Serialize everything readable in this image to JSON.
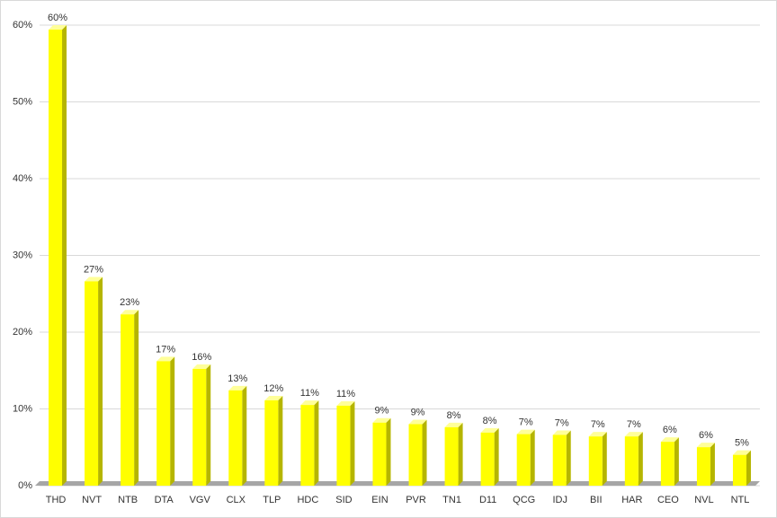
{
  "chart_data": {
    "type": "bar3d",
    "categories": [
      "THD",
      "NVT",
      "NTB",
      "DTA",
      "VGV",
      "CLX",
      "TLP",
      "HDC",
      "SID",
      "EIN",
      "PVR",
      "TN1",
      "D11",
      "QCG",
      "IDJ",
      "BII",
      "HAR",
      "CEO",
      "NVL",
      "NTL"
    ],
    "values": [
      60,
      27.2,
      22.9,
      16.8,
      15.8,
      13,
      11.7,
      11.1,
      11,
      8.8,
      8.6,
      8.2,
      7.5,
      7.3,
      7.2,
      7,
      7,
      6.3,
      5.6,
      4.6
    ],
    "value_labels": [
      "60%",
      "27%",
      "23%",
      "17%",
      "16%",
      "13%",
      "12%",
      "11%",
      "11%",
      "9%",
      "9%",
      "8%",
      "8%",
      "7%",
      "7%",
      "7%",
      "7%",
      "6%",
      "6%",
      "5%"
    ],
    "color": "#ffff00",
    "ylim": [
      0,
      60
    ],
    "yticks": [
      {
        "value": 0,
        "label": "0%"
      },
      {
        "value": 10,
        "label": "10%"
      },
      {
        "value": 20,
        "label": "20%"
      },
      {
        "value": 30,
        "label": "30%"
      },
      {
        "value": 40,
        "label": "40%"
      },
      {
        "value": 50,
        "label": "50%"
      },
      {
        "value": 60,
        "label": "60%"
      }
    ],
    "grid": true
  }
}
